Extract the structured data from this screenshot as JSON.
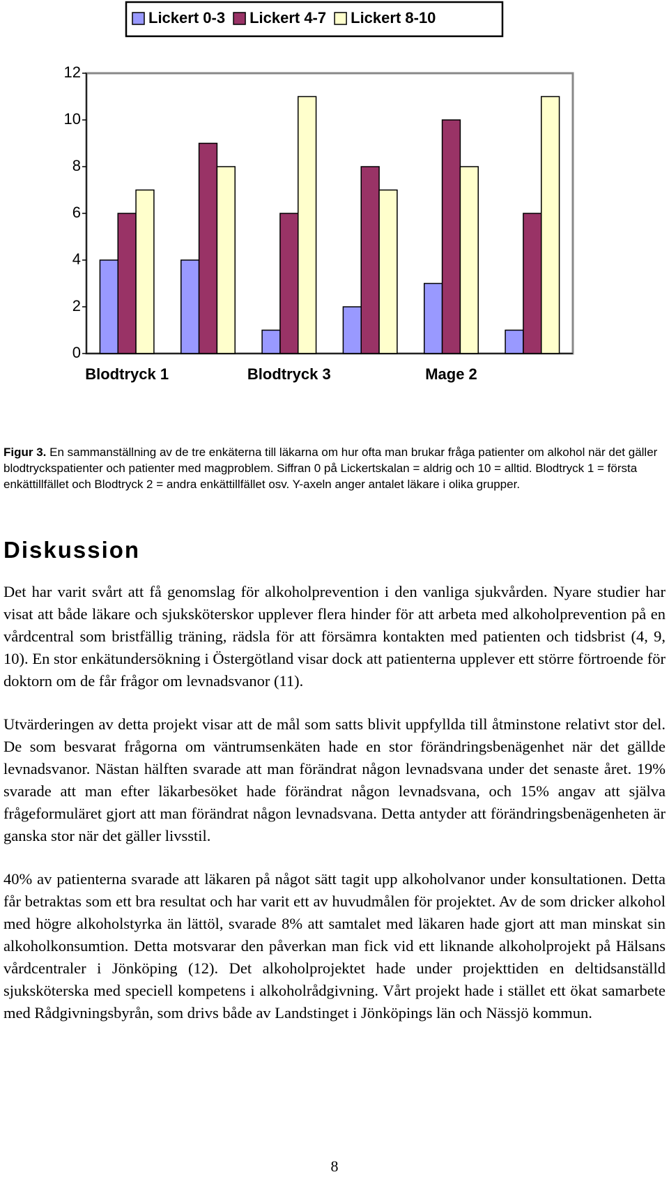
{
  "chart_data": {
    "type": "bar",
    "categories": [
      "Blodtryck 1",
      null,
      "Blodtryck 3",
      null,
      "Mage 2",
      null
    ],
    "series": [
      {
        "name": "Lickert 0-3",
        "color": "#9999ff",
        "values": [
          4,
          4,
          1,
          2,
          3,
          1
        ]
      },
      {
        "name": "Lickert 4-7",
        "color": "#993366",
        "values": [
          6,
          9,
          6,
          8,
          10,
          6
        ]
      },
      {
        "name": "Lickert 8-10",
        "color": "#ffffcc",
        "values": [
          7,
          8,
          11,
          7,
          8,
          11
        ]
      }
    ],
    "ylim": [
      0,
      12
    ],
    "yticks": [
      0,
      2,
      4,
      6,
      8,
      10,
      12
    ],
    "grid": false,
    "legend": "top"
  },
  "document": {
    "caption_label": "Figur 3.",
    "caption_text": "En sammanställning av de tre enkäterna till läkarna om hur ofta man brukar fråga patienter om alkohol när det gäller blodtryckspatienter och patienter med magproblem. Siffran 0 på Lickertskalan = aldrig och 10 = alltid. Blodtryck 1 = första enkättillfället och Blodtryck 2 = andra enkättillfället osv. Y-axeln anger antalet läkare i olika grupper.",
    "heading": "Diskussion",
    "paragraphs": [
      "Det har varit svårt att få genomslag för alkoholprevention i den vanliga sjukvården. Nyare studier har visat att både läkare och sjuksköterskor upplever flera hinder för att arbeta med alkoholprevention på en vårdcentral som bristfällig träning, rädsla för att försämra kontakten med patienten och tidsbrist (4, 9, 10). En stor enkätundersökning i Östergötland visar dock att patienterna upplever ett större förtroende för doktorn om de får frågor om levnadsvanor (11).",
      "Utvärderingen av detta projekt visar att de mål som satts blivit uppfyllda till åtminstone relativt stor del. De som besvarat frågorna om väntrumsenkäten hade en stor förändringsbenägenhet när det gällde levnadsvanor. Nästan hälften svarade att man förändrat någon levnadsvana under det senaste året. 19% svarade att man efter läkarbesöket hade förändrat någon levnadsvana, och 15% angav att själva frågeformuläret gjort att man förändrat någon levnadsvana. Detta antyder att förändringsbenägenheten är ganska stor när det gäller livsstil.",
      "40% av patienterna svarade att läkaren på något sätt tagit upp alkoholvanor under konsultationen. Detta får betraktas som ett bra resultat och har varit ett av huvudmålen för projektet. Av de som dricker alkohol med högre alkoholstyrka än lättöl, svarade 8% att samtalet med läkaren hade gjort att man minskat sin alkoholkonsumtion. Detta motsvarar den påverkan man fick vid ett liknande alkoholprojekt på Hälsans vårdcentraler i Jönköping (12). Det alkoholprojektet hade under projekttiden en deltidsanställd sjuksköterska med speciell kompetens i alkoholrådgivning. Vårt projekt hade i stället ett ökat samarbete med Rådgivningsbyrån, som drivs både av Landstinget i Jönköpings län och Nässjö kommun."
    ],
    "page_number": "8"
  }
}
